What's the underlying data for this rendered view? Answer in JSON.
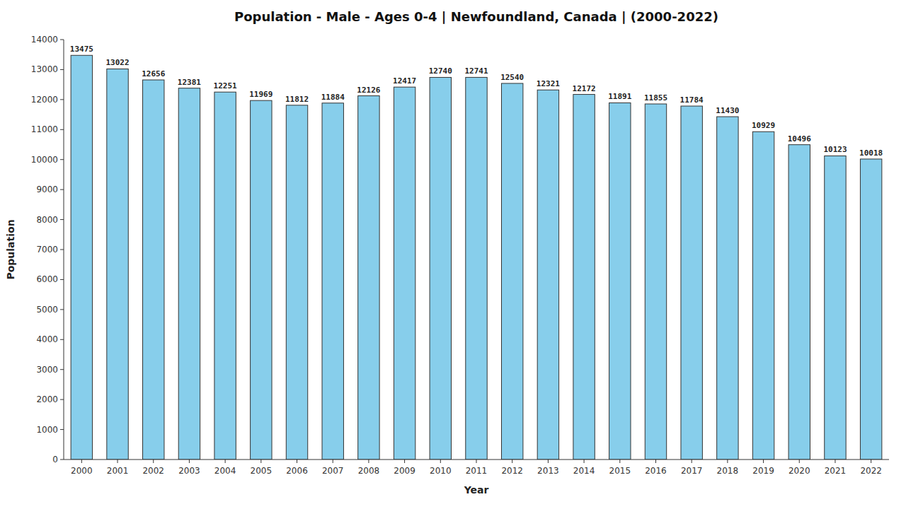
{
  "chart_data": {
    "type": "bar",
    "title": "Population - Male - Ages 0-4 | Newfoundland, Canada |  (2000-2022)",
    "xlabel": "Year",
    "ylabel": "Population",
    "categories": [
      "2000",
      "2001",
      "2002",
      "2003",
      "2004",
      "2005",
      "2006",
      "2007",
      "2008",
      "2009",
      "2010",
      "2011",
      "2012",
      "2013",
      "2014",
      "2015",
      "2016",
      "2017",
      "2018",
      "2019",
      "2020",
      "2021",
      "2022"
    ],
    "values": [
      13475,
      13022,
      12656,
      12381,
      12251,
      11969,
      11812,
      11884,
      12126,
      12417,
      12740,
      12741,
      12540,
      12321,
      12172,
      11891,
      11855,
      11784,
      11430,
      10929,
      10496,
      10123,
      10018
    ],
    "color": "#87CEEB",
    "ylim": [
      0,
      14000
    ],
    "yticks": [
      0,
      1000,
      2000,
      3000,
      4000,
      5000,
      6000,
      7000,
      8000,
      9000,
      10000,
      11000,
      12000,
      13000,
      14000
    ],
    "grid": false,
    "data_labels": true
  }
}
